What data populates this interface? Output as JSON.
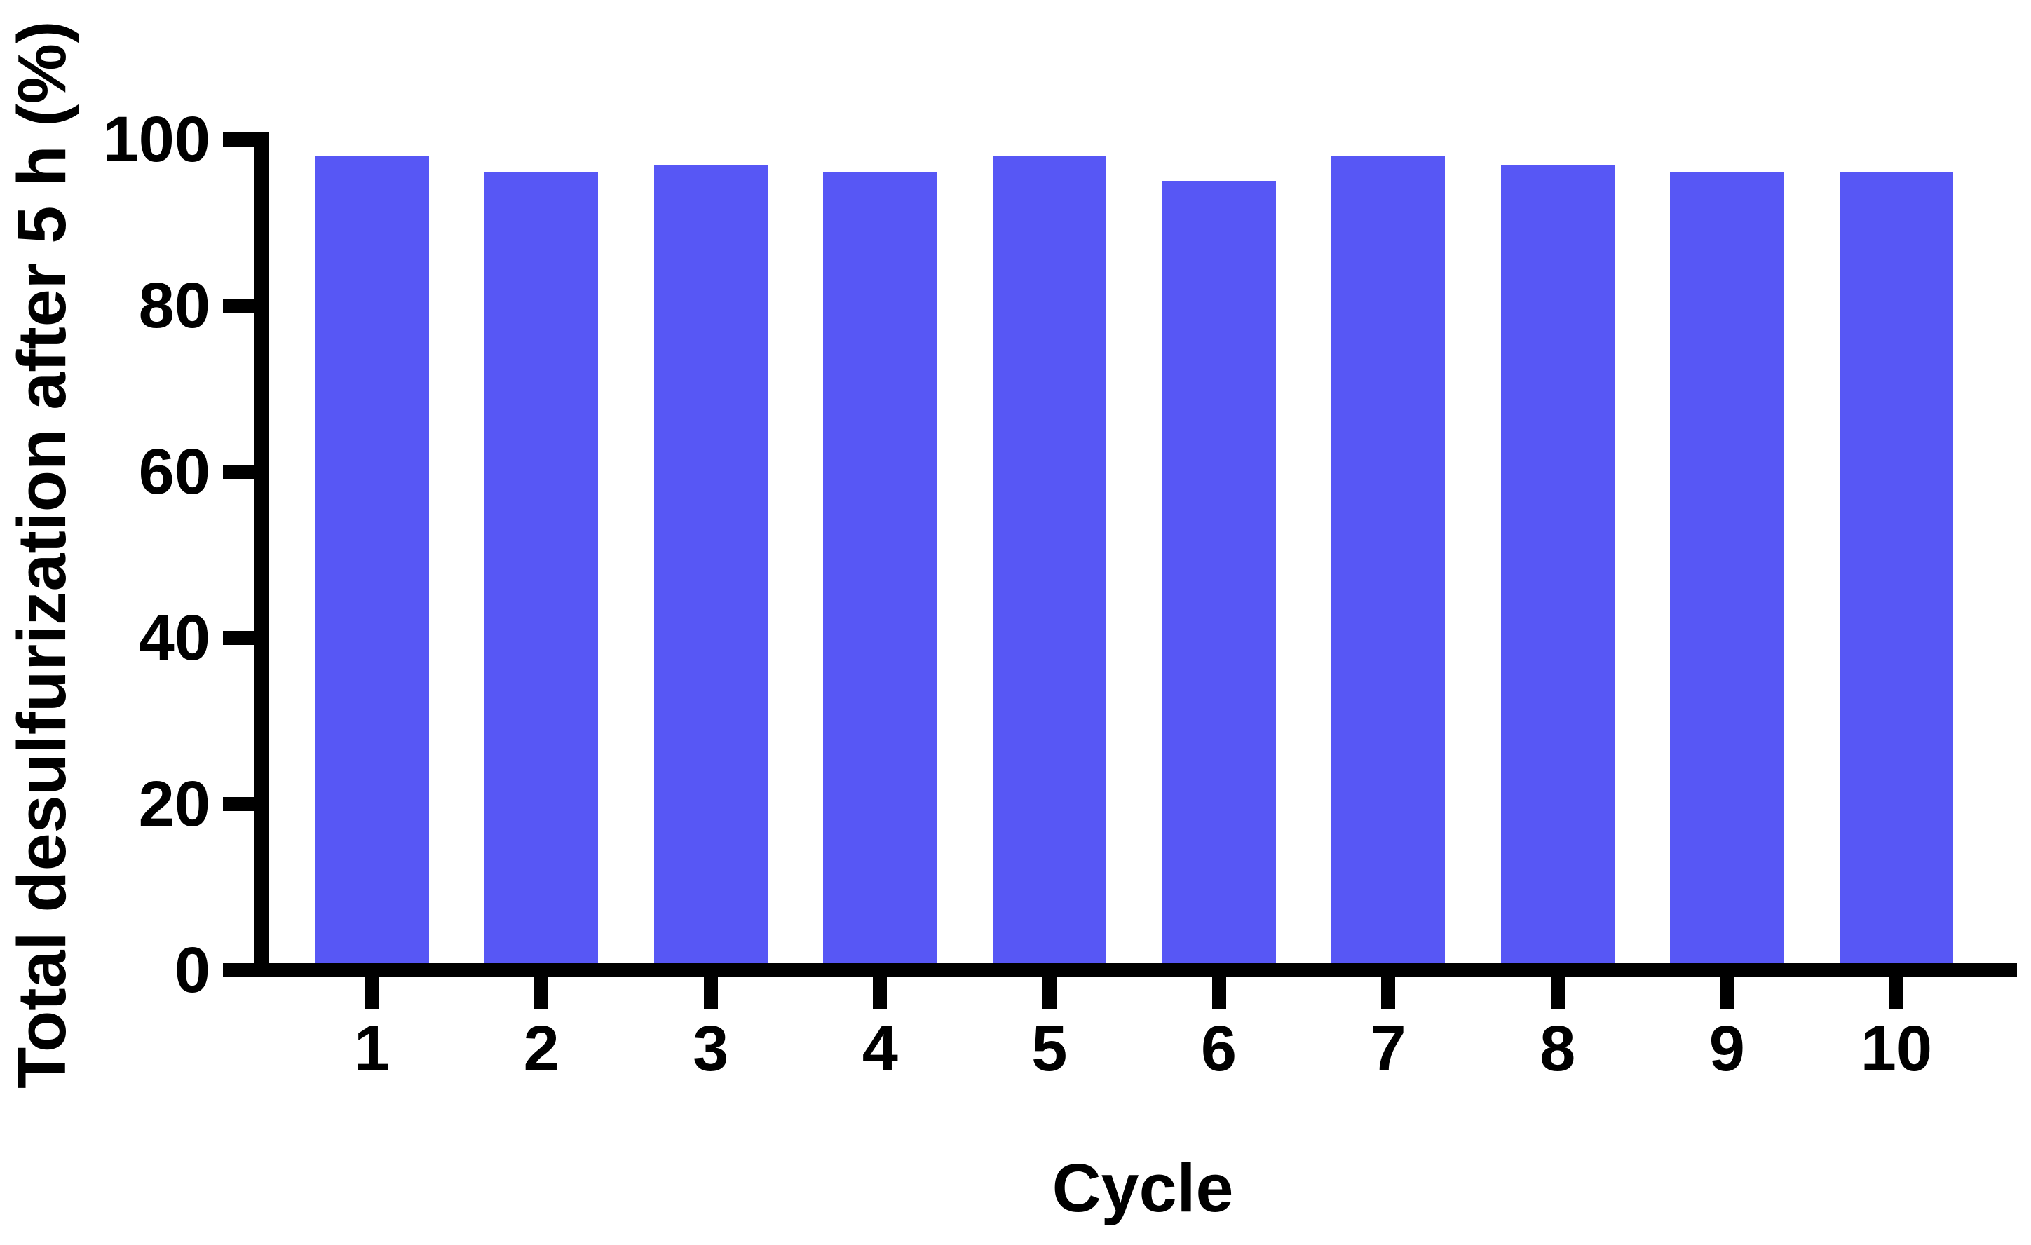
{
  "figure": {
    "background_color": "#FFFFFF",
    "text_color": "#000000"
  },
  "chart_data": {
    "type": "bar",
    "title": "",
    "xlabel": "Cycle",
    "ylabel": "Total desulfurization after 5 h (%)",
    "categories": [
      "1",
      "2",
      "3",
      "4",
      "5",
      "6",
      "7",
      "8",
      "9",
      "10"
    ],
    "values": [
      98,
      96,
      97,
      96,
      98,
      95,
      98,
      97,
      96,
      96
    ],
    "ylim": [
      0,
      100
    ],
    "yticks": [
      0,
      20,
      40,
      60,
      80,
      100
    ],
    "bar_color": "#5757F5",
    "axis_color": "#000000",
    "grid": false,
    "legend_position": "none"
  }
}
